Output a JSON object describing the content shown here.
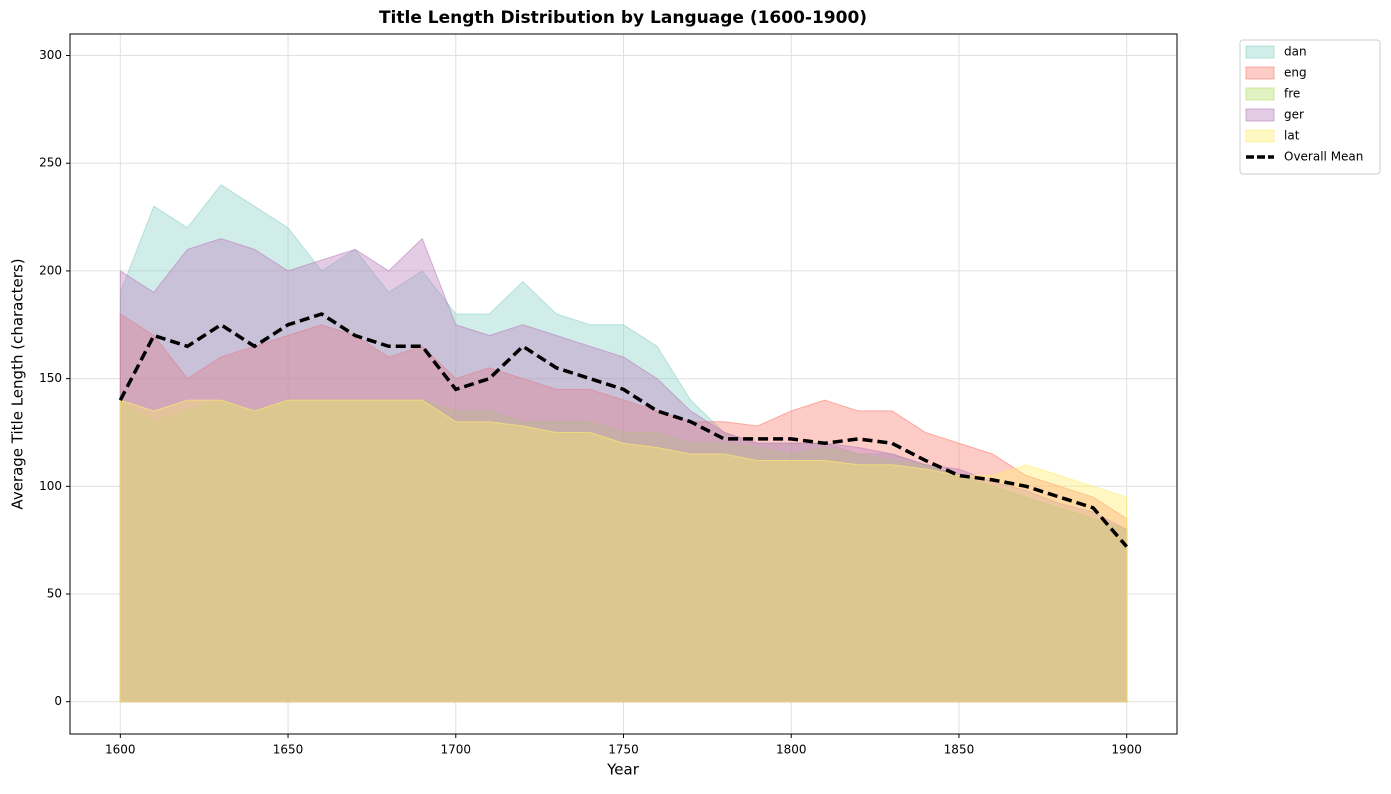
{
  "chart_data": {
    "type": "area",
    "title": "Title Length Distribution by Language (1600-1900)",
    "xlabel": "Year",
    "ylabel": "Average Title Length (characters)",
    "x": [
      1600,
      1610,
      1620,
      1630,
      1640,
      1650,
      1660,
      1670,
      1680,
      1690,
      1700,
      1710,
      1720,
      1730,
      1740,
      1750,
      1760,
      1770,
      1780,
      1790,
      1800,
      1810,
      1820,
      1830,
      1840,
      1850,
      1860,
      1870,
      1880,
      1890,
      1900
    ],
    "series": [
      {
        "name": "dan",
        "color": "#8dd3c7",
        "values": [
          190,
          230,
          220,
          240,
          230,
          220,
          200,
          210,
          190,
          200,
          180,
          180,
          195,
          180,
          175,
          175,
          165,
          140,
          125,
          120,
          120,
          120,
          115,
          115,
          110,
          105,
          100,
          95,
          90,
          85,
          80
        ]
      },
      {
        "name": "eng",
        "color": "#fb8072",
        "values": [
          180,
          170,
          150,
          160,
          165,
          170,
          175,
          170,
          160,
          165,
          150,
          155,
          150,
          145,
          145,
          140,
          135,
          130,
          130,
          128,
          135,
          140,
          135,
          135,
          125,
          120,
          115,
          105,
          100,
          95,
          85
        ]
      },
      {
        "name": "fre",
        "color": "#b3de69",
        "values": [
          140,
          130,
          135,
          140,
          135,
          140,
          140,
          140,
          140,
          140,
          135,
          135,
          130,
          130,
          130,
          125,
          125,
          120,
          120,
          118,
          115,
          118,
          115,
          112,
          110,
          105,
          100,
          95,
          90,
          85,
          80
        ]
      },
      {
        "name": "ger",
        "color": "#bc80bd",
        "values": [
          200,
          190,
          210,
          215,
          210,
          200,
          205,
          210,
          200,
          215,
          175,
          170,
          175,
          170,
          165,
          160,
          150,
          135,
          125,
          120,
          120,
          120,
          118,
          115,
          110,
          108,
          102,
          98,
          92,
          88,
          80
        ]
      },
      {
        "name": "lat",
        "color": "#ffed6f",
        "values": [
          140,
          135,
          140,
          140,
          135,
          140,
          140,
          140,
          140,
          140,
          130,
          130,
          128,
          125,
          125,
          120,
          118,
          115,
          115,
          112,
          112,
          112,
          110,
          110,
          108,
          105,
          105,
          110,
          105,
          100,
          95
        ]
      },
      {
        "name": "Overall Mean",
        "color": "#000000",
        "line": "dashed",
        "values": [
          140,
          170,
          165,
          175,
          165,
          175,
          180,
          170,
          165,
          165,
          145,
          150,
          165,
          155,
          150,
          145,
          135,
          130,
          122,
          122,
          122,
          120,
          122,
          120,
          112,
          105,
          103,
          100,
          95,
          90,
          72
        ]
      }
    ],
    "xlim": [
      1585,
      1915
    ],
    "xticks": [
      1600,
      1650,
      1700,
      1750,
      1800,
      1850,
      1900
    ],
    "ylim": [
      -15,
      310
    ],
    "yticks": [
      0,
      50,
      100,
      150,
      200,
      250,
      300
    ],
    "grid": true,
    "legend": "outside upper right"
  }
}
